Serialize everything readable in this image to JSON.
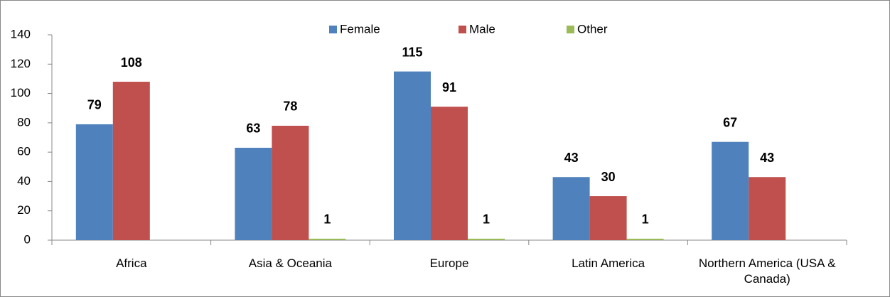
{
  "chart_data": {
    "type": "bar",
    "categories": [
      "Africa",
      "Asia & Oceania",
      "Europe",
      "Latin America",
      "Northern America (USA & Canada)"
    ],
    "series": [
      {
        "name": "Female",
        "color": "#4f81bd",
        "values": [
          79,
          63,
          115,
          43,
          67
        ]
      },
      {
        "name": "Male",
        "color": "#c0504d",
        "values": [
          108,
          78,
          91,
          30,
          43
        ]
      },
      {
        "name": "Other",
        "color": "#9bbb59",
        "values": [
          null,
          1,
          1,
          1,
          null
        ]
      }
    ],
    "ylim": [
      0,
      140
    ],
    "yticks": [
      0,
      20,
      40,
      60,
      80,
      100,
      120,
      140
    ],
    "grid": false,
    "legend": "top"
  }
}
